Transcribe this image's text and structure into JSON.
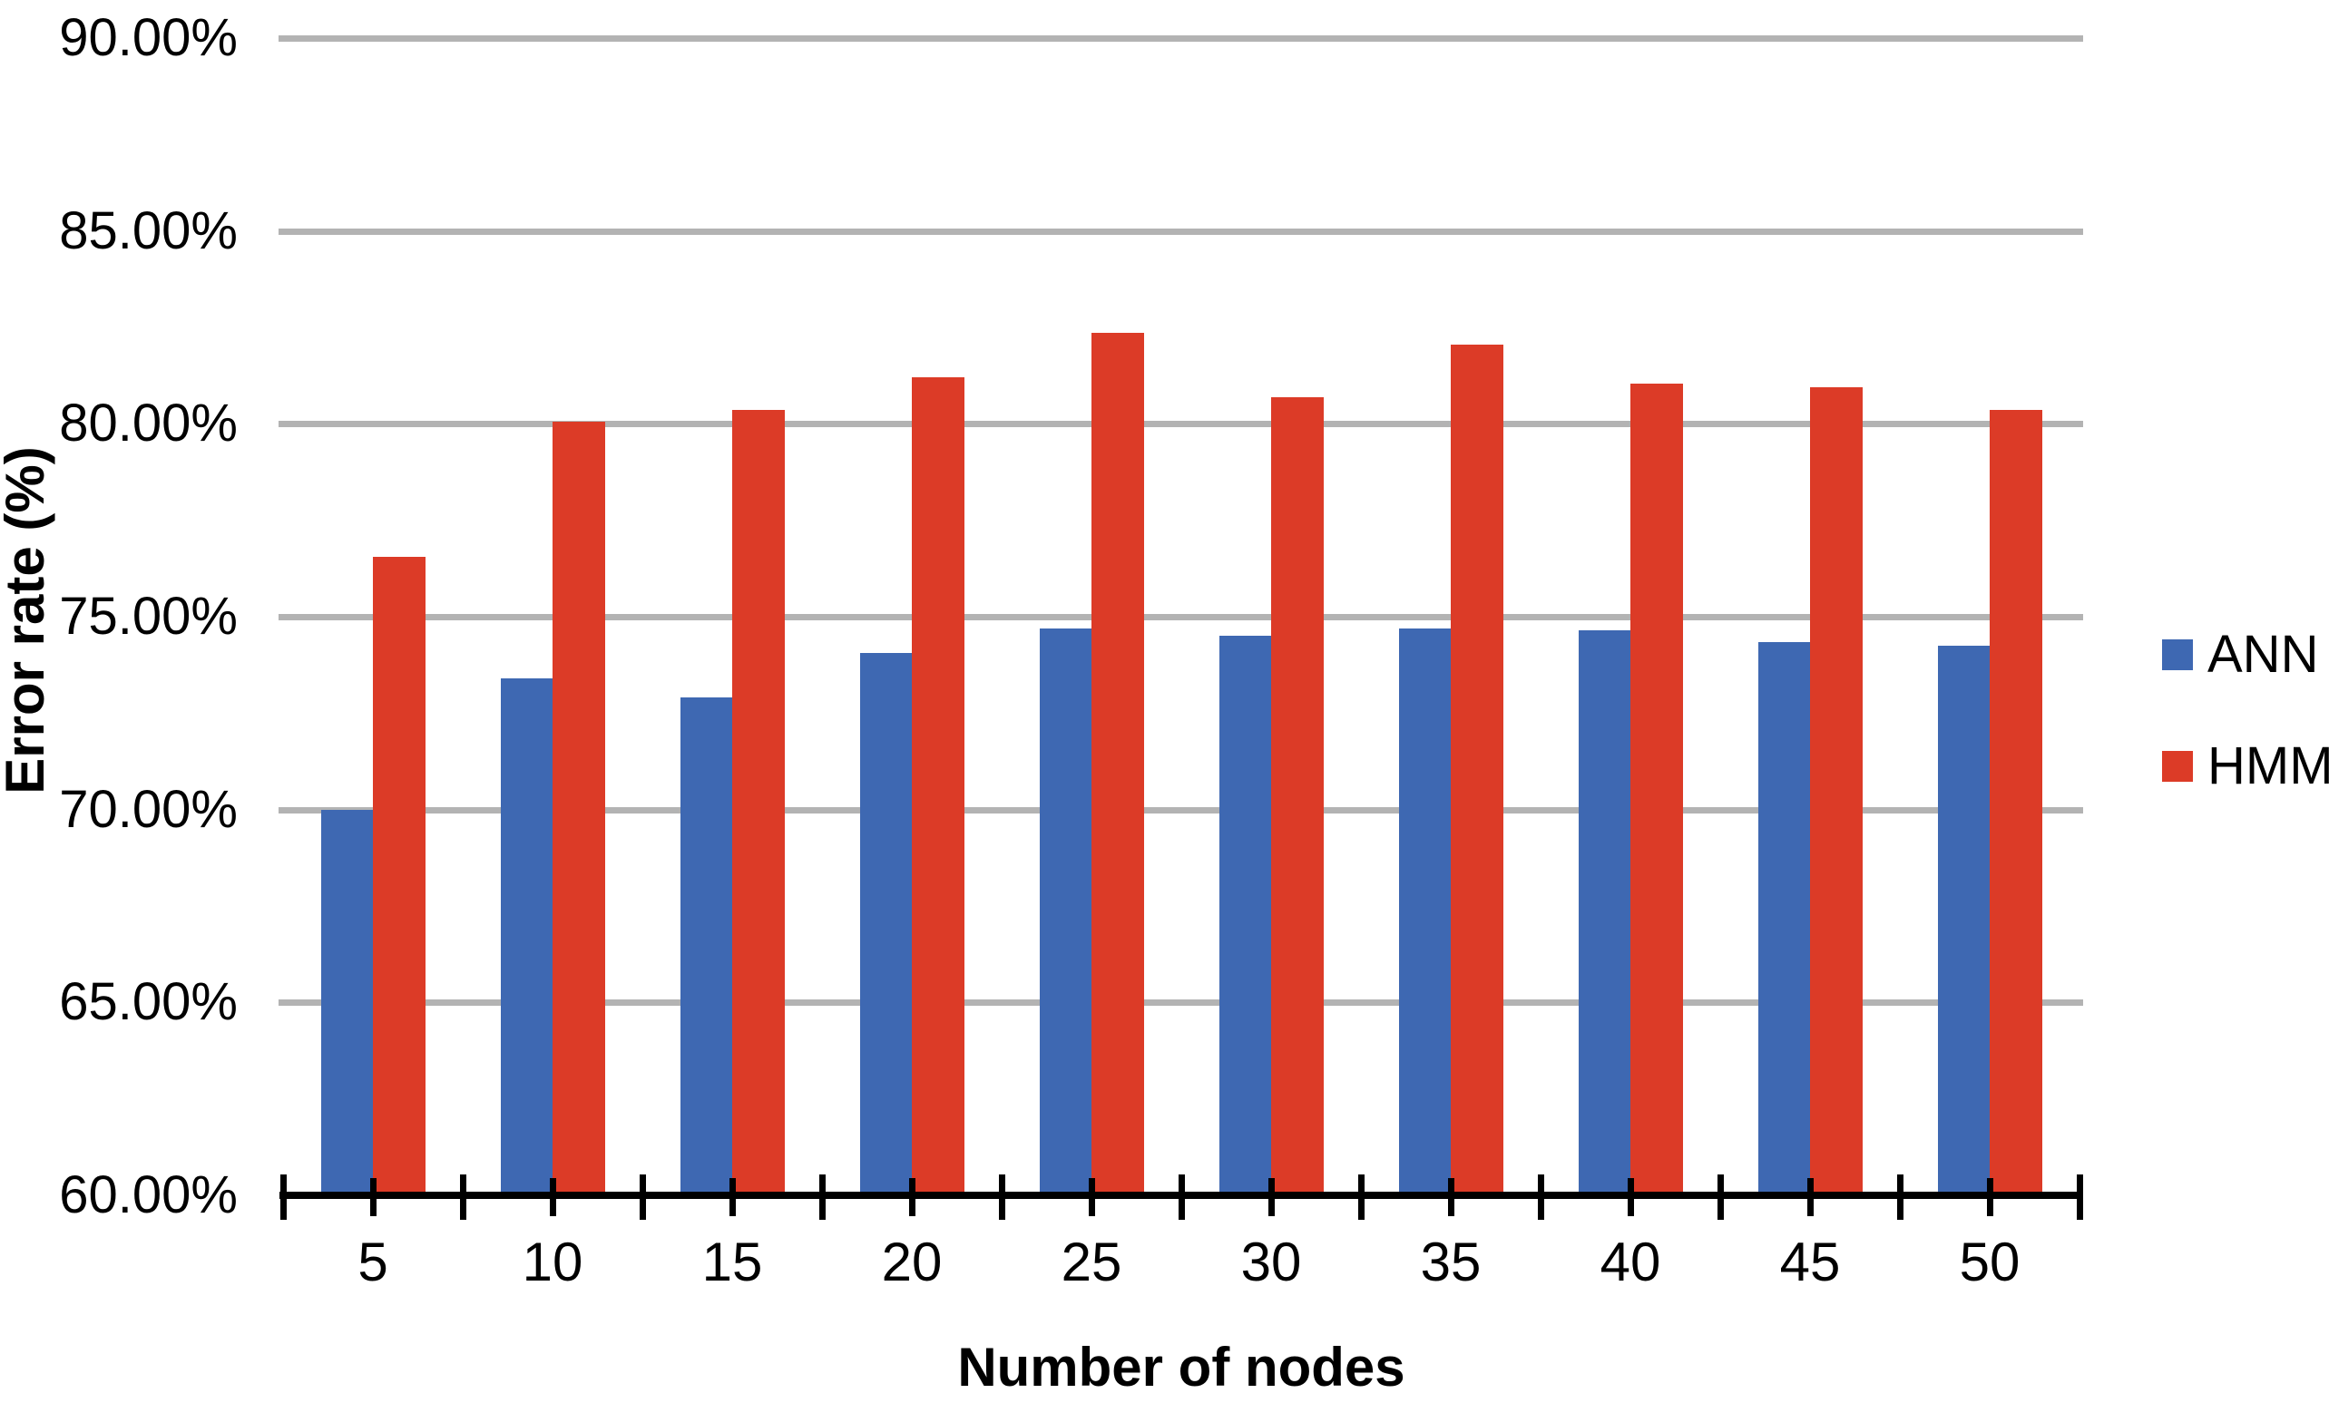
{
  "chart_data": {
    "type": "bar",
    "title": "",
    "xlabel": "Number of nodes",
    "ylabel": "Error rate (%)",
    "categories": [
      "5",
      "10",
      "15",
      "20",
      "25",
      "30",
      "35",
      "40",
      "45",
      "50"
    ],
    "series": [
      {
        "name": "ANN",
        "color": "#3E68B2",
        "values": [
          70.0,
          73.4,
          72.9,
          74.05,
          74.7,
          74.5,
          74.7,
          74.65,
          74.35,
          74.25
        ]
      },
      {
        "name": "HMM",
        "color": "#DC3B27",
        "values": [
          76.55,
          80.05,
          80.35,
          81.2,
          82.35,
          80.7,
          82.05,
          81.05,
          80.95,
          80.35
        ]
      }
    ],
    "ylim": [
      60,
      90
    ],
    "ytick_step": 5,
    "ytick_labels": [
      "90.00%",
      "85.00%",
      "80.00%",
      "75.00%",
      "70.00%",
      "65.00%",
      "60.00%"
    ],
    "grid": "horizontal",
    "legend_position": "right",
    "gridline_color": "#B3B3B3",
    "axis_color": "#000000"
  }
}
